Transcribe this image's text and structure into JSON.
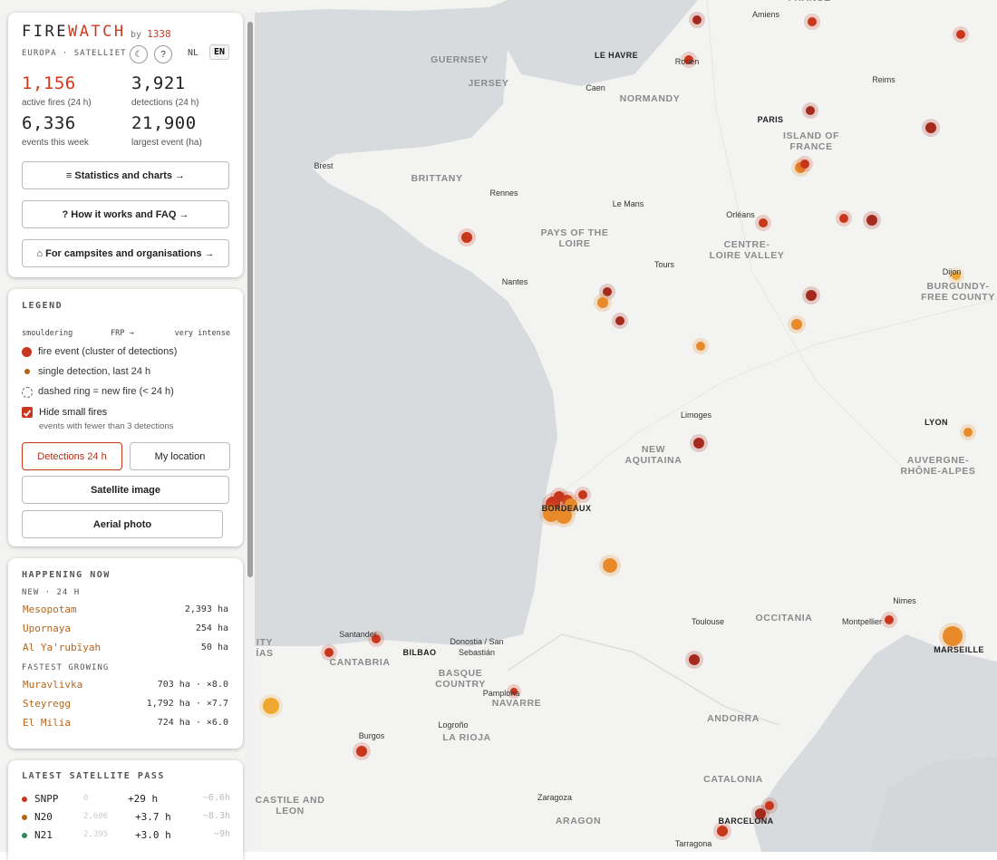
{
  "header": {
    "brand_1": "FIRE",
    "brand_2": "WATCH",
    "by": "by",
    "author": "1338",
    "subtitle": "EUROPA · SATELLIET",
    "theme_button": "☾",
    "help_button": "?",
    "languages": [
      "NL",
      "EN"
    ]
  },
  "stats": [
    {
      "value": "1,156",
      "label": "active fires (24 h)"
    },
    {
      "value": "3,921",
      "label": "detections (24 h)"
    },
    {
      "value": "6,336",
      "label": "events this week"
    },
    {
      "value": "21,900",
      "label": "largest event (ha)"
    }
  ],
  "links": [
    "≡ Statistics and charts →",
    "? How it works and FAQ →",
    "⌂ For campsites and organisations →"
  ],
  "legend": {
    "title": "LEGEND",
    "scale": [
      "smouldering",
      "FRP →",
      "very intense"
    ],
    "items": [
      "fire event (cluster of detections)",
      "single detection, last 24 h",
      "dashed ring = new fire (< 24 h)"
    ],
    "checkbox": {
      "label": "Hide small fires",
      "note": "events with fewer than 3 detections",
      "checked": true
    },
    "buttons": [
      "Detections 24 h",
      "My location",
      "Satellite image",
      "Aerial photo"
    ]
  },
  "happening": {
    "title": "HAPPENING NOW",
    "new_heading": "NEW · 24 H",
    "new": [
      {
        "name": "Mesopotam",
        "value": "2,393 ha"
      },
      {
        "name": "Upornaya",
        "value": "254 ha"
      },
      {
        "name": "Al Ya'rubīyah",
        "value": "50 ha"
      }
    ],
    "growing_heading": "FASTEST GROWING",
    "growing": [
      {
        "name": "Muravlivka",
        "value": "703 ha · ×8.0"
      },
      {
        "name": "Steyregg",
        "value": "1,792 ha · ×7.7"
      },
      {
        "name": "El Milia",
        "value": "724 ha · ×6.0"
      }
    ]
  },
  "satellite": {
    "title": "LATEST SATELLITE PASS",
    "passes": [
      {
        "name": "SNPP",
        "count": "0",
        "ago": "+29 h",
        "next": "~6.6h"
      },
      {
        "name": "N20",
        "count": "2,606",
        "ago": "+3.7 h",
        "next": "~8.3h"
      },
      {
        "name": "N21",
        "count": "2,395",
        "ago": "+3.0 h",
        "next": "~9h"
      }
    ]
  },
  "map": {
    "labels": [
      "Amiens",
      "Rouen",
      "LE HAVRE",
      "Caen",
      "Reims",
      "PARIS",
      "Brest",
      "Rennes",
      "Le Mans",
      "Orléans",
      "Nantes",
      "Tours",
      "Dijon",
      "Limoges",
      "LYON",
      "BORDEAUX",
      "Toulouse",
      "Nimes",
      "Montpellier",
      "MARSEILLE",
      "Santander",
      "BILBAO",
      "Donostia / San\nSebastián",
      "Pamplona",
      "Logroño",
      "Burgos",
      "Zaragoza",
      "BARCELONA",
      "Tarragona",
      "GUERNSEY",
      "JERSEY",
      "NORMANDY",
      "ISLAND OF\nFRANCE",
      "BRITTANY",
      "PAYS OF THE\nLOIRE",
      "CENTRE-\nLOIRE VALLEY",
      "BURGUNDY-\nFREE COUNTY",
      "NEW\nAQUITAINA",
      "AUVERGNE-\nRHÔNE-ALPES",
      "OCCITANIA",
      "BASQUE\nCOUNTRY",
      "NAVARRE",
      "CANTABRIA",
      "LA RIOJA",
      "ANDORRA",
      "CATALONIA",
      "CASTILE AND\nLEON",
      "ARAGON",
      "FRANCE",
      "ITY\nÍAS"
    ]
  }
}
